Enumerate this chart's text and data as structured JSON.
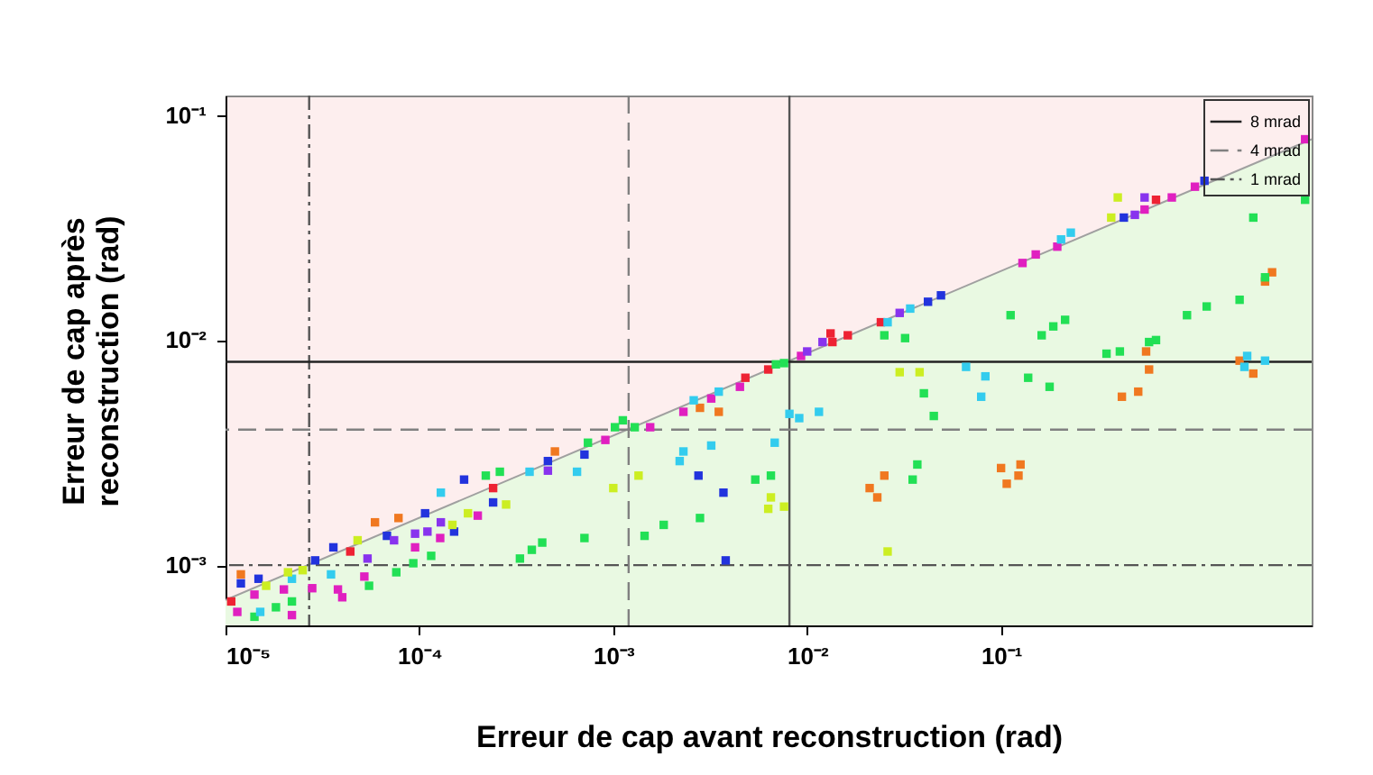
{
  "chart_data": {
    "type": "scatter",
    "xlabel": "Erreur de cap avant reconstruction (rad)",
    "ylabel": "Erreur de cap après\nreconstruction (rad)",
    "log": "xy",
    "grid": false,
    "legend": "top right",
    "marker": "square",
    "xlim": [
      1e-05,
      4.0
    ],
    "ylim": [
      0.00054,
      0.122
    ],
    "xticks": [
      {
        "value": 1e-05,
        "label": "10⁻⁵"
      },
      {
        "value": 0.0001,
        "label": "10⁻⁴"
      },
      {
        "value": 0.001,
        "label": "10⁻³"
      },
      {
        "value": 0.01,
        "label": "10⁻²"
      },
      {
        "value": 0.1,
        "label": "10⁻¹"
      }
    ],
    "yticks": [
      {
        "value": 0.001,
        "label": "10⁻³"
      },
      {
        "value": 0.01,
        "label": "10⁻²"
      },
      {
        "value": 0.1,
        "label": "10⁻¹"
      }
    ],
    "ref_lines": [
      {
        "axis": "y",
        "value": 0.008,
        "label": "8 mrad",
        "color": "#222222",
        "line_style": "solid"
      },
      {
        "axis": "y",
        "value": 0.004,
        "label": "4 mrad",
        "color": "#808080",
        "line_style": "dashed"
      },
      {
        "axis": "y",
        "value": 0.001,
        "label": "1 mrad",
        "color": "#555555",
        "line_style": "dashdot"
      },
      {
        "axis": "x",
        "value": 0.0081,
        "color": "#555555",
        "line_style": "solid"
      },
      {
        "axis": "x",
        "value": 0.0012,
        "color": "#808080",
        "line_style": "dashed"
      },
      {
        "axis": "x",
        "value": 2.7e-05,
        "color": "#555555",
        "line_style": "dashdot"
      }
    ],
    "series": [
      {
        "type": "area",
        "marker": "none",
        "color": "#e9f9e2",
        "x": [
          1e-05,
          4.0
        ],
        "values": [
          0.0007,
          0.078
        ]
      },
      {
        "color": "#ee2233",
        "x": [
          1.07e-05,
          4.4e-05,
          0.00024,
          0.0048,
          0.0063,
          0.0135,
          0.0132,
          0.0162,
          0.024,
          0.63
        ],
        "values": [
          0.00069,
          0.00115,
          0.0022,
          0.0068,
          0.0074,
          0.0098,
          0.0107,
          0.0105,
          0.012,
          0.042
        ]
      },
      {
        "color": "#e020c0",
        "x": [
          1.15e-05,
          1.41e-05,
          2.2e-05,
          2e-05,
          2.8e-05,
          3.8e-05,
          4e-05,
          5.2e-05,
          9.5e-05,
          0.000128,
          0.0002,
          0.00091,
          0.00155,
          0.0023,
          0.0032,
          0.0045,
          0.0093,
          0.129,
          0.151,
          0.195,
          0.55,
          0.76,
          1.0,
          3.7
        ],
        "values": [
          0.00062,
          0.00074,
          0.0006,
          0.00078,
          0.00079,
          0.00078,
          0.00072,
          0.00089,
          0.0012,
          0.00132,
          0.00166,
          0.0036,
          0.0041,
          0.0048,
          0.0055,
          0.0062,
          0.0085,
          0.022,
          0.024,
          0.026,
          0.038,
          0.043,
          0.048,
          0.078
        ]
      },
      {
        "color": "#f07820",
        "x": [
          1.2e-05,
          5.9e-05,
          7.8e-05,
          0.0005,
          0.0028,
          0.0035,
          0.021,
          0.025,
          0.023,
          0.1,
          0.107,
          0.123,
          0.126,
          2.5,
          2.3,
          0.56,
          0.58,
          0.42,
          0.51,
          1.7,
          2.0
        ],
        "values": [
          0.00091,
          0.00155,
          0.00162,
          0.0032,
          0.005,
          0.0048,
          0.0022,
          0.0025,
          0.002,
          0.0027,
          0.0023,
          0.0025,
          0.0028,
          0.02,
          0.0182,
          0.0089,
          0.0074,
          0.0056,
          0.0059,
          0.0081,
          0.0071
        ]
      },
      {
        "color": "#2233dd",
        "x": [
          1.2e-05,
          1.48e-05,
          2.9e-05,
          3.6e-05,
          6.8e-05,
          0.000107,
          0.000151,
          0.00017,
          0.00024,
          0.00046,
          0.00071,
          0.00275,
          0.0037,
          0.0038,
          0.042,
          0.049,
          0.43,
          1.12
        ],
        "values": [
          0.00083,
          0.00087,
          0.00105,
          0.0012,
          0.00135,
          0.0017,
          0.00141,
          0.0024,
          0.0019,
          0.0029,
          0.0031,
          0.0025,
          0.0021,
          0.00105,
          0.0148,
          0.0158,
          0.035,
          0.051
        ]
      },
      {
        "color": "#22e055",
        "x": [
          1.41e-05,
          1.82e-05,
          2.2e-05,
          5.5e-05,
          7.6e-05,
          9.3e-05,
          0.000115,
          0.00022,
          0.00026,
          0.00033,
          0.00038,
          0.00043,
          0.00071,
          0.00074,
          0.00102,
          0.00112,
          0.00129,
          0.00145,
          0.00182,
          0.0028,
          0.0069,
          0.0076,
          0.0054,
          0.0065,
          0.025,
          0.032,
          0.04,
          0.045,
          0.035,
          0.037,
          0.112,
          0.162,
          0.186,
          0.214,
          0.138,
          0.178,
          3.7,
          2.0,
          2.3,
          1.7,
          1.15,
          0.91,
          0.63,
          0.58,
          0.41,
          0.35
        ],
        "values": [
          0.00059,
          0.00065,
          0.00069,
          0.00081,
          0.00093,
          0.00102,
          0.0011,
          0.0025,
          0.0026,
          0.00107,
          0.00117,
          0.00126,
          0.00132,
          0.0035,
          0.0041,
          0.0044,
          0.0041,
          0.00135,
          0.00151,
          0.00162,
          0.0078,
          0.0079,
          0.0024,
          0.0025,
          0.0105,
          0.0102,
          0.0058,
          0.0046,
          0.0024,
          0.0028,
          0.0129,
          0.0105,
          0.0115,
          0.0123,
          0.0068,
          0.0062,
          0.042,
          0.035,
          0.019,
          0.0151,
          0.0141,
          0.0129,
          0.01,
          0.0098,
          0.0089,
          0.0087
        ]
      },
      {
        "color": "#33ccee",
        "x": [
          1.51e-05,
          2.2e-05,
          3.5e-05,
          0.000129,
          0.00037,
          0.00065,
          0.0022,
          0.0023,
          0.0032,
          0.0026,
          0.0035,
          0.0068,
          0.0081,
          0.0091,
          0.0115,
          0.026,
          0.034,
          0.066,
          0.083,
          0.079,
          0.204,
          0.229,
          1.86,
          1.8,
          2.3
        ],
        "values": [
          0.00062,
          0.00087,
          0.00091,
          0.0021,
          0.0026,
          0.0026,
          0.0029,
          0.0032,
          0.0034,
          0.0054,
          0.0059,
          0.0035,
          0.0047,
          0.0045,
          0.0048,
          0.012,
          0.0138,
          0.0076,
          0.0069,
          0.0056,
          0.028,
          0.03,
          0.0085,
          0.0076,
          0.0081
        ]
      },
      {
        "color": "#ccee22",
        "x": [
          1.62e-05,
          2.1e-05,
          2.5e-05,
          4.8e-05,
          0.000148,
          0.000178,
          0.00028,
          0.001,
          0.00135,
          0.0065,
          0.0063,
          0.0076,
          0.03,
          0.038,
          0.026,
          0.37,
          0.4
        ],
        "values": [
          0.00081,
          0.00093,
          0.00095,
          0.00129,
          0.00151,
          0.0017,
          0.00186,
          0.0022,
          0.0025,
          0.002,
          0.00178,
          0.00182,
          0.0072,
          0.0072,
          0.00115,
          0.035,
          0.043
        ]
      },
      {
        "color": "#8833ee",
        "x": [
          5.4e-05,
          7.4e-05,
          9.5e-05,
          0.00011,
          0.000129,
          0.00046,
          0.01,
          0.012,
          0.03,
          0.49,
          0.55
        ],
        "values": [
          0.00107,
          0.00129,
          0.00138,
          0.00141,
          0.00155,
          0.00263,
          0.0089,
          0.0098,
          0.0132,
          0.036,
          0.043
        ]
      }
    ]
  }
}
